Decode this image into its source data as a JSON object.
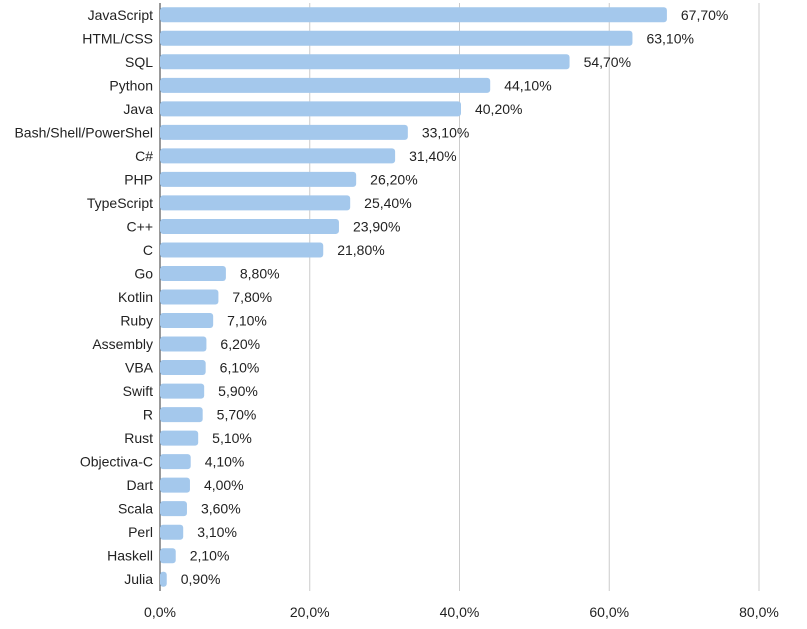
{
  "chart_data": {
    "type": "bar",
    "orientation": "horizontal",
    "title": "",
    "xlabel": "",
    "ylabel": "",
    "xlim": [
      0,
      80
    ],
    "ticks": [
      "0,0%",
      "20,0%",
      "40,0%",
      "60,0%",
      "80,0%"
    ],
    "tick_values": [
      0,
      20,
      40,
      60,
      80
    ],
    "grid": true,
    "bar_color": "#a4c8ec",
    "categories": [
      "JavaScript",
      "HTML/CSS",
      "SQL",
      "Python",
      "Java",
      "Bash/Shell/PowerShel",
      "C#",
      "PHP",
      "TypeScript",
      "C++",
      "C",
      "Go",
      "Kotlin",
      "Ruby",
      "Assembly",
      "VBA",
      "Swift",
      "R",
      "Rust",
      "Objectiva-C",
      "Dart",
      "Scala",
      "Perl",
      "Haskell",
      "Julia"
    ],
    "values": [
      67.7,
      63.1,
      54.7,
      44.1,
      40.2,
      33.1,
      31.4,
      26.2,
      25.4,
      23.9,
      21.8,
      8.8,
      7.8,
      7.1,
      6.2,
      6.1,
      5.9,
      5.7,
      5.1,
      4.1,
      4.0,
      3.6,
      3.1,
      2.1,
      0.9
    ],
    "value_labels": [
      "67,70%",
      "63,10%",
      "54,70%",
      "44,10%",
      "40,20%",
      "33,10%",
      "31,40%",
      "26,20%",
      "25,40%",
      "23,90%",
      "21,80%",
      "8,80%",
      "7,80%",
      "7,10%",
      "6,20%",
      "6,10%",
      "5,90%",
      "5,70%",
      "5,10%",
      "4,10%",
      "4,00%",
      "3,60%",
      "3,10%",
      "2,10%",
      "0,90%"
    ]
  }
}
